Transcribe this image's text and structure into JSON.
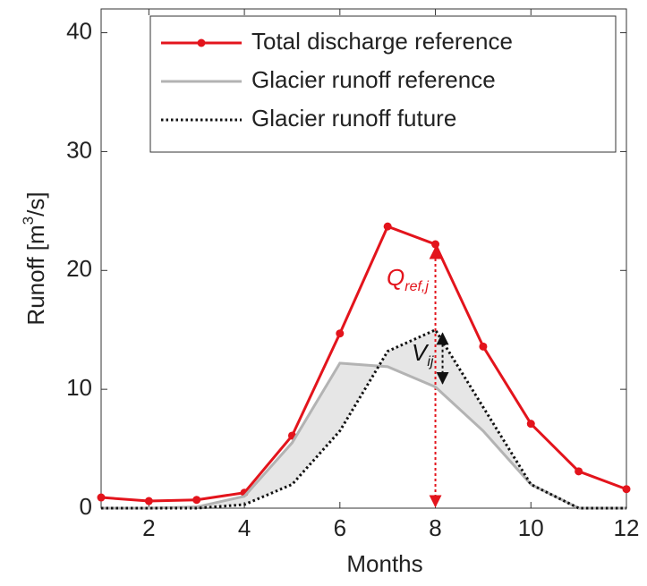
{
  "chart_data": {
    "type": "line",
    "xlabel": "Months",
    "ylabel": [
      "Runoff [m",
      "3",
      "/s]"
    ],
    "x": [
      1,
      2,
      3,
      4,
      5,
      6,
      7,
      8,
      9,
      10,
      11,
      12
    ],
    "series": [
      {
        "name": "Total discharge reference",
        "color": "#e3141c",
        "style": "solid-marker",
        "values": [
          0.9,
          0.6,
          0.7,
          1.3,
          6.1,
          14.7,
          23.7,
          22.2,
          13.6,
          7.1,
          3.1,
          1.6
        ]
      },
      {
        "name": "Glacier runoff reference",
        "color": "#b3b3b3",
        "style": "solid",
        "values": [
          0,
          0,
          0.1,
          1.0,
          5.5,
          12.2,
          11.9,
          10.2,
          6.5,
          2.0,
          0,
          0
        ]
      },
      {
        "name": "Glacier runoff future",
        "color": "#111111",
        "style": "dotted",
        "values": [
          0,
          0,
          0,
          0.3,
          2.0,
          6.5,
          13.2,
          15.0,
          8.5,
          2.0,
          0,
          0
        ]
      }
    ],
    "xlim": [
      1,
      12
    ],
    "xticks": [
      2,
      4,
      6,
      8,
      10,
      12
    ],
    "ylim": [
      0,
      42
    ],
    "yticks": [
      0,
      10,
      20,
      30,
      40
    ],
    "legend": "upper right",
    "annotations": [
      {
        "text": "Q",
        "subscript": "ref,j",
        "color": "#e3141c"
      },
      {
        "text": "V",
        "subscript": "ij",
        "color": "#111111"
      }
    ]
  }
}
